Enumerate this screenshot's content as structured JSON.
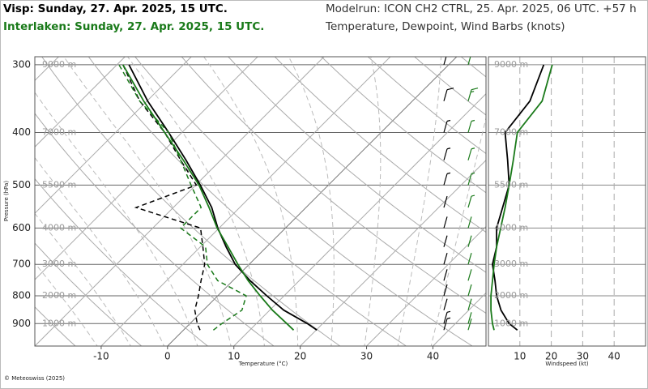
{
  "header": {
    "left": [
      {
        "text": "Visp: Sunday, 27. Apr. 2025, 15 UTC.",
        "color": "#000000"
      },
      {
        "text": "Interlaken: Sunday, 27. Apr. 2025, 15 UTC.",
        "color": "#1a7a1a"
      }
    ],
    "right": [
      "Modelrun: ICON CH2 CTRL, 25. Apr. 2025, 06 UTC. +57 h",
      "Temperature, Dewpoint, Wind Barbs (knots)"
    ]
  },
  "footer": "© Meteoswiss (2025)",
  "chart_data": [
    {
      "type": "skewt",
      "xlabel": "Temperature (°C)",
      "ylabel": "Pressure (hPa)",
      "xlim": [
        -20,
        48
      ],
      "xticks": [
        -10,
        0,
        10,
        20,
        30,
        40
      ],
      "ylim": [
        990,
        290
      ],
      "yticks": [
        300,
        400,
        500,
        600,
        700,
        800,
        900
      ],
      "log_y": true,
      "height_labels": [
        "9000 m",
        "7000 m",
        "5500 m",
        "4000 m",
        "3000 m",
        "2000 m",
        "1000 m"
      ],
      "y": [
        925,
        900,
        850,
        800,
        750,
        700,
        650,
        600,
        550,
        500,
        450,
        400,
        350,
        300
      ],
      "profiles": [
        {
          "color": "#000000",
          "temperature": [
            20.1,
            17.7,
            12.1,
            7.4,
            2.6,
            -2.1,
            -6.1,
            -10.2,
            -14.2,
            -19.3,
            -25.2,
            -32.0,
            -39.9,
            -48.2
          ],
          "dewpoint": [
            2.5,
            1.1,
            -1.3,
            -2.9,
            -4.8,
            -6.7,
            -9.6,
            -12.8,
            -25.6,
            -19.9,
            -26.0,
            -32.6,
            -41.1,
            -49.1
          ]
        },
        {
          "color": "#1a7a1a",
          "temperature": [
            16.6,
            14.6,
            10.4,
            6.4,
            2.3,
            -1.7,
            -5.8,
            -10.3,
            -14.6,
            -19.5,
            -25.6,
            -32.6,
            -40.5,
            -49.1
          ],
          "dewpoint": [
            4.5,
            4.8,
            5.8,
            4.3,
            -2.3,
            -6.3,
            -9.2,
            -15.8,
            -15.8,
            -20.7,
            -26.0,
            -32.0,
            -41.1,
            -49.7
          ]
        }
      ]
    },
    {
      "type": "line",
      "xlabel": "Windspeed (kt)",
      "xlim": [
        0,
        50
      ],
      "xticks": [
        10,
        20,
        30,
        40
      ],
      "ylim": [
        990,
        290
      ],
      "yticks": [
        300,
        400,
        500,
        600,
        700,
        800,
        900
      ],
      "log_y": true,
      "height_labels": [
        "9000 m",
        "7000 m",
        "5500 m",
        "4000 m",
        "3000 m",
        "2000 m",
        "1000 m"
      ],
      "y": [
        925,
        900,
        850,
        800,
        750,
        700,
        650,
        600,
        550,
        500,
        450,
        400,
        350,
        300
      ],
      "series": [
        {
          "color": "#000000",
          "values": [
            9.2,
            6.6,
            4.0,
            2.6,
            2.1,
            1.3,
            2.6,
            2.6,
            4.5,
            6.6,
            6.1,
            5.3,
            13.2,
            17.6
          ]
        },
        {
          "color": "#1a7a1a",
          "values": [
            1.8,
            1.3,
            0.8,
            0.8,
            1.3,
            1.8,
            2.6,
            3.9,
            5.3,
            6.6,
            7.9,
            9.2,
            17.1,
            20.3
          ]
        }
      ]
    }
  ]
}
